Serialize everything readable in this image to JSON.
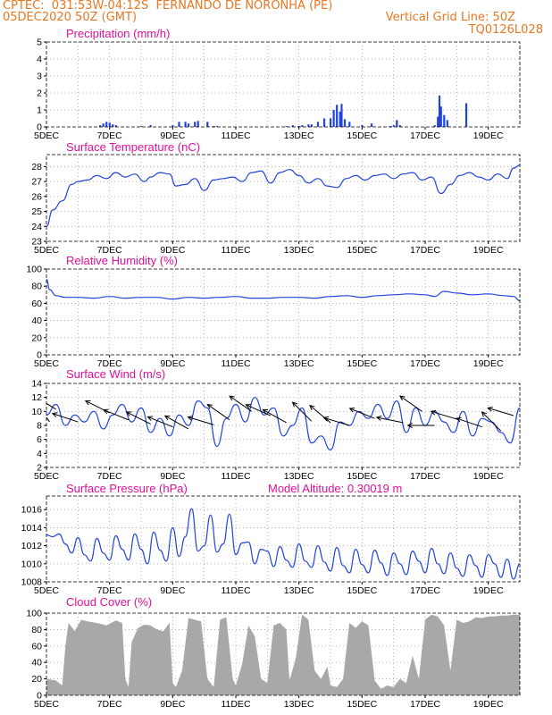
{
  "header": {
    "line1": "CPTEC:  031:53W-04:12S  FERNANDO DE NORONHA (PE)",
    "line2": "05DEC2020 50Z (GMT)",
    "grid_note": "Vertical Grid Line: 50Z",
    "code": "TQ0126L028",
    "model_altitude": "Model Altitude: 0.30019 m"
  },
  "colors": {
    "header": "#e87722",
    "title": "#e0109a",
    "series": "#2244dd",
    "cloud": "#a8a8a8",
    "grid": "#999999"
  },
  "x_ticks": [
    "5DEC",
    "7DEC",
    "9DEC",
    "11DEC",
    "13DEC",
    "15DEC",
    "17DEC",
    "19DEC"
  ],
  "x_range_days": [
    5,
    20
  ],
  "chart_data": [
    {
      "type": "bar",
      "title": "Precipitation (mm/h)",
      "ylim": [
        0,
        5
      ],
      "yticks": [
        "0",
        "1",
        "2",
        "3",
        "4",
        "5"
      ],
      "x": [
        6.7,
        6.8,
        6.9,
        7.0,
        7.1,
        7.2,
        8.0,
        8.3,
        9.0,
        9.2,
        9.4,
        9.5,
        9.7,
        9.8,
        10.1,
        10.3,
        10.4,
        12.6,
        12.8,
        13.0,
        13.1,
        13.3,
        13.4,
        13.6,
        13.8,
        14.0,
        14.1,
        14.2,
        14.3,
        14.35,
        14.45,
        14.6,
        15.0,
        15.3,
        15.9,
        16.0,
        16.1,
        16.2,
        17.3,
        17.4,
        17.45,
        17.5,
        17.6,
        17.7,
        18.3
      ],
      "values": [
        0.1,
        0.2,
        0.3,
        0.25,
        0.15,
        0.1,
        0.05,
        0.1,
        0.1,
        0.3,
        0.3,
        0.2,
        0.3,
        0.35,
        0.3,
        0.05,
        0.05,
        0.05,
        0.1,
        0.05,
        0.1,
        0.15,
        0.15,
        0.3,
        0.5,
        0.5,
        1.0,
        1.3,
        0.9,
        1.35,
        0.45,
        0.3,
        0.1,
        0.2,
        0.05,
        0.1,
        0.4,
        0.1,
        0.1,
        0.6,
        1.85,
        1.2,
        0.7,
        0.4,
        1.4
      ]
    },
    {
      "type": "line",
      "title": "Surface Temperature (nC)",
      "ylim": [
        23,
        28.8
      ],
      "yticks": [
        "23",
        "24",
        "25",
        "26",
        "27",
        "28"
      ],
      "x": [
        5.0,
        5.2,
        5.5,
        5.8,
        6.0,
        6.3,
        6.6,
        6.9,
        7.2,
        7.5,
        7.8,
        8.1,
        8.3,
        8.6,
        8.9,
        9.1,
        9.4,
        9.7,
        10.0,
        10.3,
        10.6,
        10.9,
        11.2,
        11.5,
        11.8,
        12.1,
        12.4,
        12.7,
        13.0,
        13.3,
        13.6,
        13.9,
        14.2,
        14.5,
        14.8,
        15.1,
        15.4,
        15.7,
        16.0,
        16.3,
        16.6,
        16.9,
        17.2,
        17.5,
        17.8,
        18.1,
        18.4,
        18.7,
        19.0,
        19.3,
        19.6,
        19.8,
        20.0
      ],
      "values": [
        24.0,
        25.1,
        25.7,
        26.8,
        27.0,
        27.1,
        27.4,
        27.2,
        27.6,
        27.3,
        27.5,
        27.0,
        27.3,
        27.6,
        27.5,
        26.7,
        26.8,
        27.2,
        26.4,
        27.1,
        27.2,
        27.3,
        27.0,
        27.6,
        27.7,
        26.9,
        27.6,
        27.8,
        27.4,
        26.9,
        27.2,
        26.7,
        26.6,
        27.2,
        27.4,
        27.1,
        27.4,
        27.5,
        27.2,
        27.5,
        27.6,
        27.1,
        27.3,
        26.2,
        26.8,
        27.4,
        27.6,
        27.3,
        27.1,
        27.5,
        27.2,
        27.9,
        28.1
      ]
    },
    {
      "type": "line",
      "title": "Relative Humidity (%)",
      "ylim": [
        0,
        100
      ],
      "yticks": [
        "0",
        "20",
        "40",
        "60",
        "80",
        "100"
      ],
      "x": [
        5.0,
        5.1,
        5.3,
        5.6,
        6.0,
        6.5,
        7.0,
        7.5,
        8.0,
        8.5,
        9.0,
        9.5,
        10.0,
        10.5,
        11.0,
        11.5,
        12.0,
        12.5,
        13.0,
        13.5,
        14.0,
        14.5,
        15.0,
        15.5,
        16.0,
        16.5,
        17.0,
        17.3,
        17.6,
        18.0,
        18.5,
        19.0,
        19.5,
        19.8,
        20.0
      ],
      "values": [
        88,
        76,
        69,
        67,
        67,
        66,
        68,
        66,
        67,
        67,
        65,
        67,
        66,
        67,
        68,
        66,
        66,
        67,
        67,
        66,
        68,
        69,
        67,
        69,
        70,
        71,
        70,
        68,
        74,
        72,
        70,
        71,
        69,
        68,
        63
      ]
    },
    {
      "type": "line",
      "title": "Surface Wind (m/s)",
      "ylim": [
        2,
        14
      ],
      "yticks": [
        "2",
        "4",
        "6",
        "8",
        "10",
        "12",
        "14"
      ],
      "x": [
        5.0,
        5.3,
        5.6,
        5.9,
        6.2,
        6.5,
        6.8,
        7.1,
        7.4,
        7.7,
        8.0,
        8.3,
        8.6,
        8.9,
        9.2,
        9.5,
        9.8,
        10.1,
        10.4,
        10.7,
        11.0,
        11.3,
        11.6,
        11.9,
        12.2,
        12.5,
        12.8,
        13.1,
        13.4,
        13.7,
        14.0,
        14.3,
        14.6,
        14.9,
        15.2,
        15.5,
        15.8,
        16.1,
        16.4,
        16.7,
        17.0,
        17.3,
        17.6,
        17.9,
        18.2,
        18.5,
        18.8,
        19.1,
        19.4,
        19.7,
        20.0
      ],
      "values": [
        9.5,
        11.0,
        8.0,
        9.5,
        8.5,
        10.0,
        7.5,
        9.5,
        11.0,
        8.5,
        10.5,
        7.0,
        9.0,
        6.5,
        9.5,
        8.0,
        11.5,
        10.5,
        5.0,
        9.0,
        11.0,
        8.5,
        12.0,
        9.5,
        10.5,
        6.5,
        8.0,
        10.5,
        5.5,
        6.5,
        4.5,
        8.5,
        8.0,
        10.0,
        9.0,
        11.0,
        9.0,
        11.5,
        7.0,
        10.5,
        8.0,
        10.0,
        8.5,
        7.0,
        10.0,
        6.5,
        9.0,
        8.5,
        7.0,
        5.5,
        10.5
      ],
      "arrows": [
        {
          "x": 5.1,
          "speed": 8.5,
          "dx": -1.0,
          "dy": 1.4
        },
        {
          "x": 5.3,
          "speed": 10.3,
          "dx": -0.8,
          "dy": 0.5
        },
        {
          "x": 6.0,
          "speed": 8.5,
          "dx": -0.9,
          "dy": 0.3
        },
        {
          "x": 7.0,
          "speed": 9.8,
          "dx": -1.0,
          "dy": 0.5
        },
        {
          "x": 7.6,
          "speed": 8.8,
          "dx": -1.0,
          "dy": 0.4
        },
        {
          "x": 8.3,
          "speed": 8.2,
          "dx": -1.0,
          "dy": 0.5
        },
        {
          "x": 9.0,
          "speed": 7.8,
          "dx": -1.0,
          "dy": 0.4
        },
        {
          "x": 9.5,
          "speed": 7.5,
          "dx": -0.9,
          "dy": 0.5
        },
        {
          "x": 10.3,
          "speed": 8.1,
          "dx": -1.0,
          "dy": 0.3
        },
        {
          "x": 10.8,
          "speed": 8.8,
          "dx": -1.0,
          "dy": 0.7
        },
        {
          "x": 11.5,
          "speed": 10.0,
          "dx": -1.0,
          "dy": 0.7
        },
        {
          "x": 12.1,
          "speed": 9.4,
          "dx": -0.9,
          "dy": 0.4
        },
        {
          "x": 12.6,
          "speed": 8.4,
          "dx": -0.9,
          "dy": 0.5
        },
        {
          "x": 13.4,
          "speed": 8.6,
          "dx": -0.6,
          "dy": 0.6
        },
        {
          "x": 14.0,
          "speed": 8.4,
          "dx": -0.6,
          "dy": 0.5
        },
        {
          "x": 14.6,
          "speed": 8.0,
          "dx": -1.0,
          "dy": 0.3
        },
        {
          "x": 15.4,
          "speed": 9.0,
          "dx": -1.0,
          "dy": 0.4
        },
        {
          "x": 16.3,
          "speed": 8.4,
          "dx": -1.0,
          "dy": 0.2
        },
        {
          "x": 16.9,
          "speed": 10.0,
          "dx": -1.0,
          "dy": 0.7
        },
        {
          "x": 17.3,
          "speed": 8.0,
          "dx": -1.0,
          "dy": 0.0
        },
        {
          "x": 18.0,
          "speed": 8.9,
          "dx": -1.0,
          "dy": 0.3
        },
        {
          "x": 18.8,
          "speed": 7.8,
          "dx": -0.9,
          "dy": 0.3
        },
        {
          "x": 19.4,
          "speed": 7.2,
          "dx": -0.7,
          "dy": 0.7
        },
        {
          "x": 19.8,
          "speed": 9.4,
          "dx": -1.0,
          "dy": 0.3
        }
      ]
    },
    {
      "type": "line",
      "title": "Surface Pressure (hPa)",
      "ylim": [
        1008,
        1017.5
      ],
      "yticks": [
        "1008",
        "1010",
        "1012",
        "1014",
        "1016"
      ],
      "x": [
        5.0,
        5.2,
        5.4,
        5.6,
        5.8,
        6.0,
        6.2,
        6.4,
        6.6,
        6.8,
        7.0,
        7.2,
        7.4,
        7.6,
        7.8,
        8.0,
        8.2,
        8.4,
        8.6,
        8.8,
        9.0,
        9.2,
        9.4,
        9.6,
        9.8,
        10.0,
        10.2,
        10.4,
        10.6,
        10.8,
        11.0,
        11.2,
        11.4,
        11.6,
        11.8,
        12.0,
        12.2,
        12.4,
        12.6,
        12.8,
        13.0,
        13.2,
        13.4,
        13.6,
        13.8,
        14.0,
        14.2,
        14.4,
        14.6,
        14.8,
        15.0,
        15.2,
        15.4,
        15.6,
        15.8,
        16.0,
        16.2,
        16.4,
        16.6,
        16.8,
        17.0,
        17.2,
        17.4,
        17.6,
        17.8,
        18.0,
        18.2,
        18.4,
        18.6,
        18.8,
        19.0,
        19.2,
        19.4,
        19.6,
        19.8,
        20.0
      ],
      "values": [
        1013.2,
        1013.0,
        1013.3,
        1012.2,
        1011.2,
        1012.9,
        1011.0,
        1010.3,
        1012.8,
        1011.2,
        1010.4,
        1013.1,
        1011.6,
        1010.4,
        1013.3,
        1011.6,
        1010.0,
        1013.5,
        1011.5,
        1010.3,
        1014.0,
        1010.8,
        1013.0,
        1016.1,
        1011.4,
        1012.0,
        1015.4,
        1011.3,
        1012.2,
        1015.5,
        1011.0,
        1012.3,
        1012.4,
        1010.0,
        1011.6,
        1011.4,
        1009.7,
        1011.9,
        1010.4,
        1009.6,
        1012.2,
        1010.3,
        1009.6,
        1012.0,
        1010.2,
        1009.2,
        1011.8,
        1009.8,
        1009.0,
        1011.6,
        1009.9,
        1009.0,
        1011.5,
        1010.1,
        1008.7,
        1011.2,
        1010.0,
        1008.8,
        1011.4,
        1010.3,
        1009.0,
        1011.7,
        1010.0,
        1008.9,
        1011.2,
        1009.5,
        1008.6,
        1011.0,
        1009.8,
        1008.5,
        1011.0,
        1010.0,
        1008.5,
        1010.5,
        1008.3,
        1010.0
      ]
    },
    {
      "type": "area",
      "title": "Cloud Cover (%)",
      "ylim": [
        0,
        100
      ],
      "yticks": [
        "0",
        "20",
        "40",
        "60",
        "80",
        "100"
      ],
      "x": [
        5.0,
        5.3,
        5.5,
        5.6,
        5.7,
        5.9,
        6.1,
        6.3,
        6.6,
        6.9,
        7.2,
        7.4,
        7.5,
        7.6,
        7.7,
        7.9,
        8.1,
        8.3,
        8.5,
        8.7,
        8.9,
        9.0,
        9.1,
        9.3,
        9.5,
        9.7,
        9.9,
        10.1,
        10.3,
        10.5,
        10.7,
        10.9,
        11.0,
        11.2,
        11.4,
        11.6,
        11.8,
        12.0,
        12.2,
        12.4,
        12.6,
        12.7,
        12.9,
        13.1,
        13.3,
        13.5,
        13.7,
        13.9,
        14.0,
        14.2,
        14.4,
        14.6,
        14.8,
        15.0,
        15.2,
        15.4,
        15.6,
        15.8,
        16.0,
        16.2,
        16.4,
        16.6,
        16.8,
        17.0,
        17.2,
        17.4,
        17.6,
        17.8,
        18.0,
        18.2,
        18.4,
        18.6,
        18.8,
        19.0,
        19.2,
        19.4,
        19.6,
        19.8,
        20.0
      ],
      "values": [
        20,
        18,
        12,
        60,
        88,
        78,
        92,
        90,
        88,
        85,
        91,
        88,
        20,
        10,
        65,
        82,
        86,
        85,
        80,
        78,
        88,
        15,
        10,
        30,
        94,
        92,
        90,
        20,
        10,
        92,
        95,
        20,
        12,
        38,
        85,
        72,
        20,
        15,
        85,
        88,
        80,
        18,
        45,
        98,
        92,
        30,
        20,
        35,
        12,
        10,
        20,
        88,
        82,
        90,
        85,
        18,
        8,
        12,
        10,
        20,
        15,
        48,
        20,
        92,
        98,
        96,
        85,
        30,
        92,
        88,
        90,
        95,
        94,
        96,
        96,
        97,
        97,
        98,
        98
      ]
    }
  ]
}
